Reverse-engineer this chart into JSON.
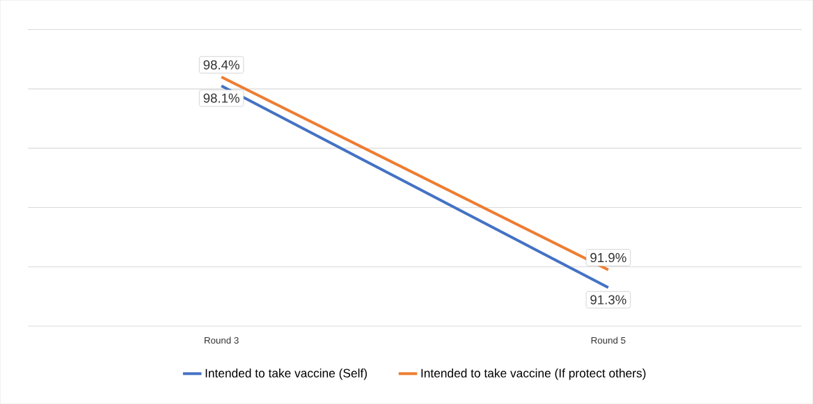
{
  "chart_data": {
    "type": "line",
    "categories": [
      "Round 3",
      "Round 5"
    ],
    "series": [
      {
        "name": "Intended to take vaccine (Self)",
        "color": "#4472c4",
        "values": [
          98.1,
          91.3
        ],
        "value_labels": [
          "98.1%",
          "91.3%"
        ]
      },
      {
        "name": "Intended to take vaccine (If protect others)",
        "color": "#ed7d31",
        "values": [
          98.4,
          91.9
        ],
        "value_labels": [
          "98.4%",
          "91.9%"
        ]
      }
    ],
    "ylim": [
      90,
      100
    ],
    "yticks": [
      {
        "value": 90,
        "label": null
      },
      {
        "value": 92,
        "label": null
      },
      {
        "value": 94,
        "label": null
      },
      {
        "value": 96,
        "label": null
      },
      {
        "value": 98,
        "label": null
      },
      {
        "value": 100,
        "label": null
      }
    ],
    "tick_labels": "x",
    "grid": "y",
    "legend": "bottom",
    "marker": "none",
    "line_style": "solid"
  }
}
